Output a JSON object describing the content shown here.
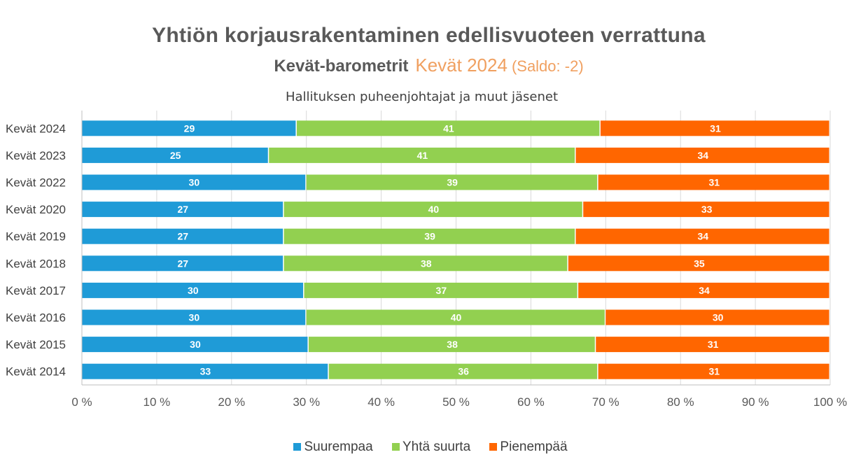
{
  "chart_data": {
    "type": "bar",
    "orientation": "horizontal",
    "stacked": "percent",
    "title": "Yhtiön korjausrakentaminen edellisvuoteen verrattuna",
    "subtitle_parts": [
      "Kevät-barometrit",
      "Kevät 2024",
      "(Saldo: -2)"
    ],
    "group_title": "Hallituksen puheenjohtajat ja muut jäsenet",
    "categories": [
      "Kevät 2024",
      "Kevät 2023",
      "Kevät 2022",
      "Kevät 2020",
      "Kevät 2019",
      "Kevät 2018",
      "Kevät 2017",
      "Kevät 2016",
      "Kevät 2015",
      "Kevät 2014"
    ],
    "series": [
      {
        "name": "Suurempaa",
        "color": "#1f9bd7",
        "values": [
          29,
          25,
          30,
          27,
          27,
          27,
          30,
          30,
          30,
          33
        ]
      },
      {
        "name": "Yhtä suurta",
        "color": "#92d050",
        "values": [
          41,
          41,
          39,
          40,
          39,
          38,
          37,
          40,
          38,
          36
        ]
      },
      {
        "name": "Pienempää",
        "color": "#ff6600",
        "values": [
          31,
          34,
          31,
          33,
          34,
          35,
          34,
          30,
          31,
          31
        ]
      }
    ],
    "xlim": [
      0,
      100
    ],
    "xticks": [
      "0 %",
      "10 %",
      "20 %",
      "30 %",
      "40 %",
      "50 %",
      "60 %",
      "70 %",
      "80 %",
      "90 %",
      "100 %"
    ],
    "grid": true,
    "legend_position": "bottom"
  }
}
